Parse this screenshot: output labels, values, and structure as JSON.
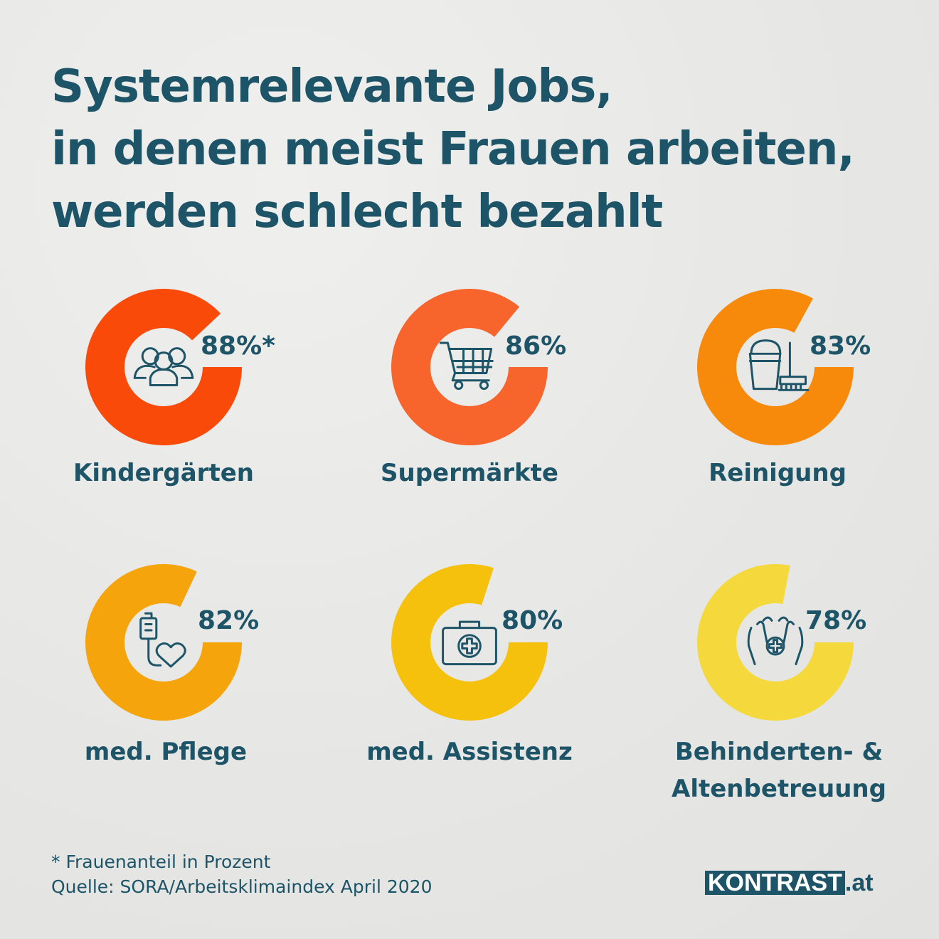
{
  "title": [
    "Systemrelevante Jobs,",
    "in denen meist Frauen arbeiten,",
    "werden schlecht bezahlt"
  ],
  "chart_data": {
    "type": "pie",
    "unit": "%",
    "items": [
      {
        "label": "Kindergärten",
        "value": 88,
        "value_label": "88%*",
        "color": "#fa4a0a",
        "icon": "people-group-icon"
      },
      {
        "label": "Supermärkte",
        "value": 86,
        "value_label": "86%",
        "color": "#f7652d",
        "icon": "shopping-cart-icon"
      },
      {
        "label": "Reinigung",
        "value": 83,
        "value_label": "83%",
        "color": "#f78a0a",
        "icon": "bucket-broom-icon"
      },
      {
        "label": "med. Pflege",
        "value": 82,
        "value_label": "82%",
        "color": "#f5a40c",
        "icon": "iv-drip-heart-icon"
      },
      {
        "label": "med. Assistenz",
        "value": 80,
        "value_label": "80%",
        "color": "#f5c10c",
        "icon": "first-aid-kit-icon"
      },
      {
        "label": "Behinderten- & Altenbetreuung",
        "label_lines": [
          "Behinderten- &",
          "Altenbetreuung"
        ],
        "value": 78,
        "value_label": "78%",
        "color": "#f5d93c",
        "icon": "caring-hands-icon"
      }
    ]
  },
  "footer": {
    "note": "* Frauenanteil in Prozent",
    "source": "Quelle: SORA/Arbeitsklimaindex April 2020"
  },
  "logo": {
    "brand": "KONTRAST",
    "tld": ".at"
  }
}
